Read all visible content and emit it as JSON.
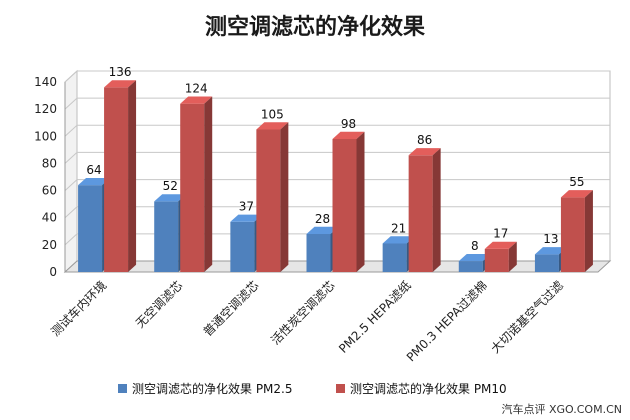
{
  "chart_data": {
    "type": "bar",
    "title": "测空调滤芯的净化效果",
    "categories": [
      "测试车内环境",
      "无空调滤芯",
      "普通空调滤芯",
      "活性炭空调滤芯",
      "PM2.5 HEPA滤纸",
      "PM0.3 HEPA过滤棉",
      "大切诺基空气过滤"
    ],
    "series": [
      {
        "name": "测空调滤芯的净化效果 PM2.5",
        "values": [
          64,
          52,
          37,
          28,
          21,
          8,
          13
        ],
        "color": "#4f81bd"
      },
      {
        "name": "测空调滤芯的净化效果 PM10",
        "values": [
          136,
          124,
          105,
          98,
          86,
          17,
          55
        ],
        "color": "#c0504d"
      }
    ],
    "ylim": [
      0,
      140
    ],
    "yticks": [
      0,
      20,
      40,
      60,
      80,
      100,
      120,
      140
    ],
    "grid": true,
    "legend": "bottom",
    "style": "3d"
  },
  "watermark": "汽车点评 XGO.COM.CN"
}
